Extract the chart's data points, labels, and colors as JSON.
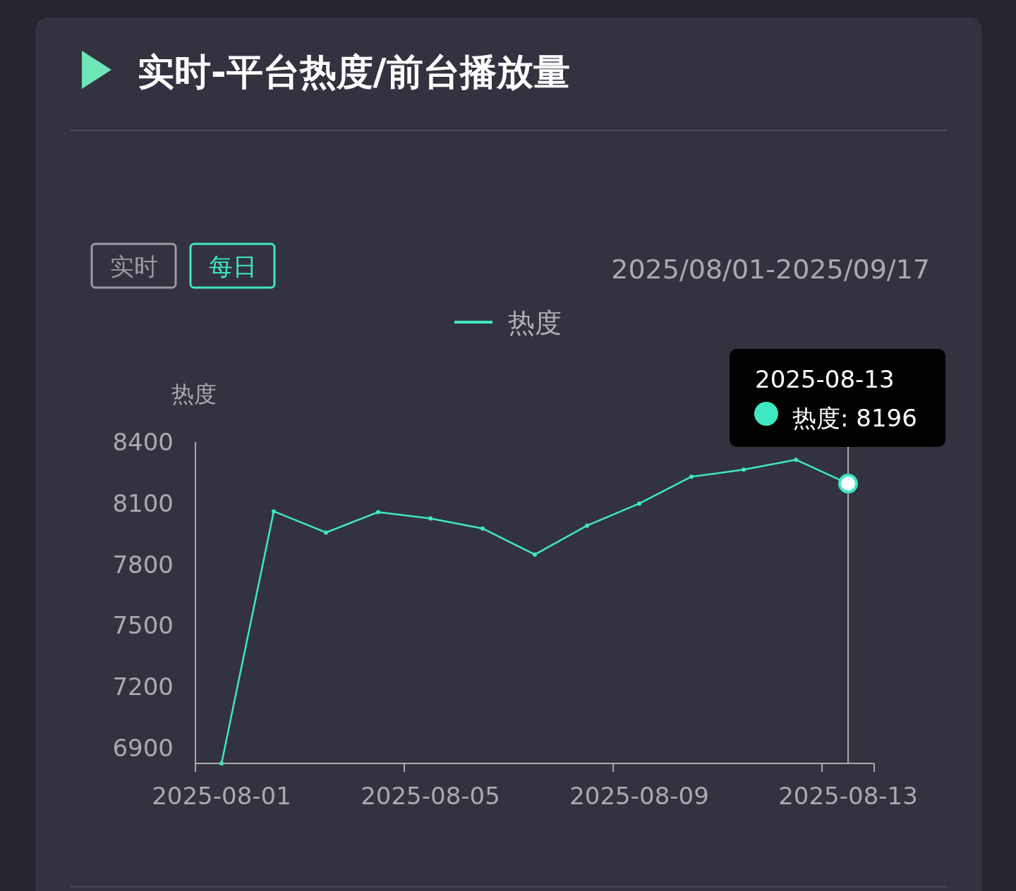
{
  "chart_data": {
    "type": "line",
    "title": "实时-平台热度/前台播放量",
    "subtitle": "2025/08/01-2025/09/17",
    "ylabel": "热度",
    "categories": [
      "2025-08-01",
      null,
      null,
      null,
      "2025-08-05",
      null,
      null,
      null,
      "2025-08-09",
      null,
      null,
      null,
      "2025-08-13"
    ],
    "series": [
      {
        "name": "热度",
        "color": "#3ee8c0",
        "values": [
          6824,
          8060,
          7956,
          8056,
          8025,
          7976,
          7848,
          7990,
          8098,
          8230,
          8264,
          8313,
          8196
        ]
      }
    ],
    "ylim": [
      6824,
      8400
    ],
    "yticks": [
      6900,
      7200,
      7500,
      7800,
      8100,
      8400
    ],
    "grid": false,
    "legend": "top",
    "marker": "circle",
    "line_style": "solid",
    "ref_lines": [
      {
        "axis": "x",
        "value": "2025-08-13",
        "color": "#aaaaaa"
      }
    ],
    "annotations": [
      "实时",
      "每日",
      "2025-08-13",
      "热度: 8196"
    ]
  }
}
